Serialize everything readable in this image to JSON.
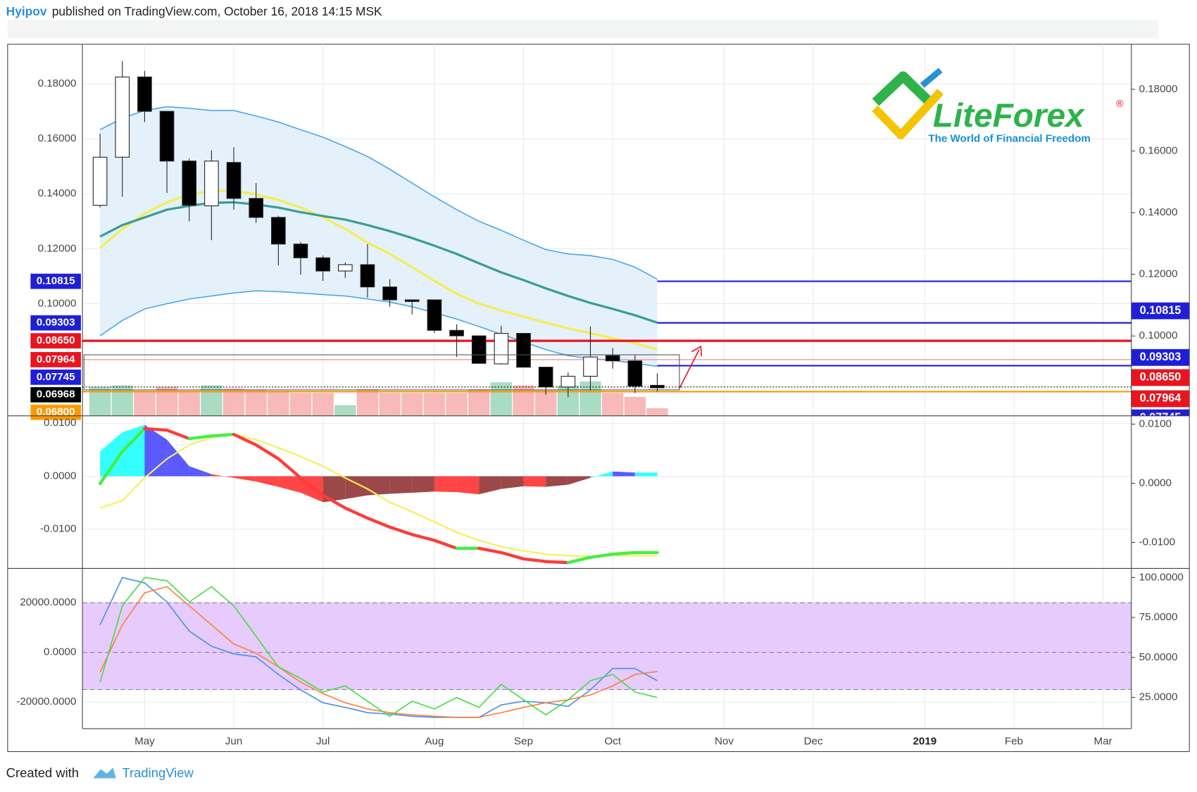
{
  "header": {
    "author": "Hyipov",
    "text": "published on TradingView.com, October 16, 2018 14:15 MSK"
  },
  "logo": {
    "name": "LiteForex",
    "tagline": "The World of Financial Freedom",
    "mark": "®"
  },
  "footer": {
    "text": "Created with",
    "brand": "TradingView"
  },
  "chart_data": {
    "type": "candlestick",
    "grid": true,
    "xlim": [
      -0.79,
      46.27
    ],
    "xticks": [
      {
        "value": 2,
        "label": "May"
      },
      {
        "value": 6,
        "label": "Jun"
      },
      {
        "value": 10,
        "label": "Jul"
      },
      {
        "value": 15,
        "label": "Aug"
      },
      {
        "value": 19,
        "label": "Sep"
      },
      {
        "value": 23,
        "label": "Oct"
      },
      {
        "value": 28,
        "label": "Nov"
      },
      {
        "value": 32,
        "label": "Dec"
      },
      {
        "value": 37,
        "label": "2019",
        "bold": true
      },
      {
        "value": 41,
        "label": "Feb"
      },
      {
        "value": 45,
        "label": "Mar"
      }
    ],
    "ylim": [
      0.0592,
      0.1944
    ],
    "yticks": [
      {
        "value": 0.1,
        "label": "0.10000"
      },
      {
        "value": 0.12,
        "label": "0.12000"
      },
      {
        "value": 0.14,
        "label": "0.14000"
      },
      {
        "value": 0.16,
        "label": "0.16000"
      },
      {
        "value": 0.18,
        "label": "0.18000"
      }
    ],
    "y2lim": [
      0.0741,
      0.1946
    ],
    "y2ticks": [
      {
        "value": 0.1,
        "label": "0.10000"
      },
      {
        "value": 0.12,
        "label": "0.12000"
      },
      {
        "value": 0.14,
        "label": "0.14000"
      },
      {
        "value": 0.16,
        "label": "0.16000"
      },
      {
        "value": 0.18,
        "label": "0.18000"
      }
    ],
    "up_color": "#ffffff",
    "down_color": "#000000",
    "open": [
      0.1358,
      0.1533,
      0.1825,
      0.17,
      0.1519,
      0.1356,
      0.1514,
      0.1383,
      0.1314,
      0.1217,
      0.1167,
      0.1119,
      0.1142,
      0.1061,
      0.1014,
      0.1014,
      0.0903,
      0.0883,
      0.0781,
      0.0892,
      0.0769,
      0.0697,
      0.0736,
      0.0811,
      0.0792,
      0.0703
    ],
    "high": [
      0.1619,
      0.1883,
      0.1847,
      0.17,
      0.1528,
      0.1558,
      0.1569,
      0.1439,
      0.132,
      0.1225,
      0.1175,
      0.115,
      0.1217,
      0.1089,
      0.1014,
      0.1014,
      0.0925,
      0.0883,
      0.0919,
      0.0892,
      0.0769,
      0.075,
      0.0917,
      0.0839,
      0.0814,
      0.0747
    ],
    "low": [
      0.135,
      0.1389,
      0.1661,
      0.1403,
      0.13,
      0.1231,
      0.1342,
      0.1294,
      0.1139,
      0.1106,
      0.1083,
      0.1094,
      0.1022,
      0.0989,
      0.0961,
      0.0894,
      0.0806,
      0.0783,
      0.0778,
      0.0769,
      0.0669,
      0.066,
      0.0683,
      0.0764,
      0.0675,
      0.068
    ],
    "close": [
      0.1533,
      0.1825,
      0.17,
      0.1519,
      0.1358,
      0.1519,
      0.1383,
      0.1314,
      0.1217,
      0.1167,
      0.1119,
      0.1142,
      0.1061,
      0.1014,
      0.1008,
      0.0903,
      0.0883,
      0.0783,
      0.0892,
      0.0769,
      0.0697,
      0.0736,
      0.0806,
      0.0792,
      0.07,
      0.0694
    ],
    "volume": [
      38,
      40,
      33,
      38,
      33,
      40,
      36,
      34,
      33,
      30,
      30,
      14,
      35,
      30,
      30,
      30,
      30,
      35,
      44,
      40,
      34,
      40,
      45,
      30,
      25,
      10
    ],
    "volume_lim": [
      0,
      60
    ],
    "volume_up_color": "#a9dcc2",
    "volume_down_color": "#f7b9b9",
    "band": {
      "color": "#4aa8e8",
      "fill": "#e4f1fb",
      "upper": [
        0.1633,
        0.1675,
        0.1703,
        0.1717,
        0.1711,
        0.1703,
        0.1703,
        0.1683,
        0.1661,
        0.1633,
        0.1606,
        0.1572,
        0.1536,
        0.1489,
        0.1439,
        0.1389,
        0.1342,
        0.13,
        0.1267,
        0.1231,
        0.1197,
        0.1181,
        0.1175,
        0.1161,
        0.1133,
        0.1089
      ],
      "lower": [
        0.0883,
        0.0939,
        0.0981,
        0.1,
        0.1017,
        0.1028,
        0.1039,
        0.1047,
        0.1044,
        0.1039,
        0.1033,
        0.1028,
        0.1017,
        0.1006,
        0.0989,
        0.0967,
        0.0944,
        0.0917,
        0.0889,
        0.0861,
        0.0833,
        0.0811,
        0.08,
        0.0794,
        0.0783,
        0.0772
      ]
    },
    "lines": [
      {
        "color": "#f3ee55",
        "width": 3,
        "values": [
          0.1203,
          0.1272,
          0.1328,
          0.1369,
          0.1397,
          0.1411,
          0.1411,
          0.1397,
          0.1378,
          0.135,
          0.1314,
          0.1272,
          0.1222,
          0.1181,
          0.1133,
          0.1083,
          0.1036,
          0.1,
          0.0975,
          0.0953,
          0.0931,
          0.0911,
          0.0892,
          0.0875,
          0.0856,
          0.0833
        ]
      },
      {
        "color": "#3b9d94",
        "width": 3,
        "values": [
          0.1244,
          0.1286,
          0.1314,
          0.1342,
          0.1356,
          0.1367,
          0.1369,
          0.1361,
          0.135,
          0.1333,
          0.1319,
          0.1306,
          0.1286,
          0.1264,
          0.1239,
          0.1211,
          0.1181,
          0.1147,
          0.1114,
          0.1086,
          0.1056,
          0.1028,
          0.1003,
          0.0981,
          0.0958,
          0.0931
        ]
      }
    ],
    "levels": [
      {
        "value": 0.10815,
        "label": "0.10815",
        "color": "#1f1fd6",
        "start": 25,
        "width": 2,
        "y2_label": true
      },
      {
        "value": 0.09303,
        "label": "0.09303",
        "color": "#1f1fd6",
        "start": 25,
        "width": 2,
        "y2_label": true
      },
      {
        "value": 0.0865,
        "label": "0.08650",
        "color": "#e8141e",
        "width": 3,
        "y2_label": true
      },
      {
        "value": 0.07964,
        "label": "0.07964",
        "color": "#e8141e",
        "line_color": "#f07070",
        "width": 1,
        "y2_label": true
      },
      {
        "value": 0.07745,
        "label": "0.07745",
        "color": "#1f1fd6",
        "start": 25,
        "width": 2,
        "y2_label": true
      },
      {
        "value": 0.06968,
        "label": "0.06968",
        "color": "#000000",
        "width": 1,
        "dash": true
      },
      {
        "value": 0.068,
        "label": "0.06800",
        "color": "#ff9800",
        "width": 2
      }
    ],
    "panes": [
      {
        "type": "macd",
        "ylim": [
          -0.0174,
          0.0114
        ],
        "yticks": [
          {
            "value": 0.01,
            "label": "0.0100"
          },
          {
            "value": 0,
            "label": "0.0000"
          },
          {
            "value": -0.01,
            "label": "-0.0100"
          }
        ],
        "y2lim": [
          -0.0144,
          0.0114
        ],
        "y2ticks": [
          {
            "value": 0.01,
            "label": "0.0100"
          },
          {
            "value": 0,
            "label": "0.0000"
          },
          {
            "value": -0.01,
            "label": "-0.0100"
          }
        ],
        "histogram": {
          "colors": {
            "up_rising": "#33ffff",
            "up_falling": "#5a5aff",
            "down_falling": "#ff4545",
            "down_rising": "#9c4848"
          },
          "values": [
            0.0047,
            0.0083,
            0.0097,
            0.0069,
            0.0019,
            0.0004,
            -0.0003,
            -0.001,
            -0.002,
            -0.0031,
            -0.0049,
            -0.0043,
            -0.0036,
            -0.0033,
            -0.0031,
            -0.0029,
            -0.003,
            -0.0034,
            -0.0024,
            -0.0019,
            -0.002,
            -0.0016,
            -0.0003,
            0.0009,
            0.0007,
            0.0007
          ]
        },
        "signal": {
          "color": "#f5f05a",
          "values": [
            -0.006,
            -0.0046,
            -0.0003,
            0.0033,
            0.0059,
            0.0073,
            0.0079,
            0.0069,
            0.0054,
            0.0037,
            0.0019,
            -0.0003,
            -0.0024,
            -0.0049,
            -0.0067,
            -0.0086,
            -0.0106,
            -0.0121,
            -0.0133,
            -0.0141,
            -0.0147,
            -0.015,
            -0.0151,
            -0.015,
            -0.015,
            -0.015
          ]
        },
        "line": {
          "rise_color": "#44ee44",
          "fall_color": "#ff3a3a",
          "values": [
            -0.0014,
            0.0047,
            0.009,
            0.0087,
            0.0071,
            0.0076,
            0.0079,
            0.0059,
            0.0033,
            -0.0003,
            -0.0036,
            -0.006,
            -0.0079,
            -0.0096,
            -0.011,
            -0.0121,
            -0.0136,
            -0.0136,
            -0.0144,
            -0.0156,
            -0.0161,
            -0.0163,
            -0.0153,
            -0.0147,
            -0.0144,
            -0.0144
          ]
        }
      },
      {
        "type": "oscillator",
        "ylim": [
          -30770,
          33850
        ],
        "yticks": [
          {
            "value": 20000,
            "label": "20000.0000"
          },
          {
            "value": 0,
            "label": "0.0000"
          },
          {
            "value": -20000,
            "label": "-20000.0000"
          }
        ],
        "y2lim": [
          5.4,
          105.7
        ],
        "y2ticks": [
          {
            "value": 100,
            "label": "100.0000"
          },
          {
            "value": 75,
            "label": "75.0000"
          },
          {
            "value": 50,
            "label": "50.0000"
          },
          {
            "value": 25,
            "label": "25.0000"
          }
        ],
        "band": {
          "top": 20000,
          "bottom": -15000,
          "color": "#e6cbfc"
        },
        "levels": [
          20000,
          0,
          -15000
        ],
        "lines": [
          {
            "color": "#4a90e2",
            "values": [
              11100,
              30200,
              28000,
              20300,
              8600,
              2500,
              -600,
              -1800,
              -8900,
              -15100,
              -20300,
              -22200,
              -24300,
              -24900,
              -25800,
              -26200,
              -26200,
              -26200,
              -21200,
              -19700,
              -20300,
              -21800,
              -15100,
              -6500,
              -6500,
              -11400
            ]
          },
          {
            "color": "#ff7f3f",
            "values": [
              -8000,
              11100,
              24000,
              26500,
              18800,
              11100,
              3400,
              -300,
              -5800,
              -12000,
              -16600,
              -20300,
              -22800,
              -24300,
              -25200,
              -25800,
              -26200,
              -26200,
              -24300,
              -22200,
              -20300,
              -19100,
              -17200,
              -13500,
              -8900,
              -7700
            ]
          },
          {
            "color": "#44dd44",
            "values": [
              -12000,
              18800,
              30200,
              28900,
              20300,
              26500,
              18800,
              6500,
              -5800,
              -10500,
              -16000,
              -13500,
              -19700,
              -25800,
              -19700,
              -22800,
              -18200,
              -22200,
              -12900,
              -19100,
              -25200,
              -19100,
              -11400,
              -8900,
              -16000,
              -18200
            ]
          }
        ]
      }
    ]
  }
}
